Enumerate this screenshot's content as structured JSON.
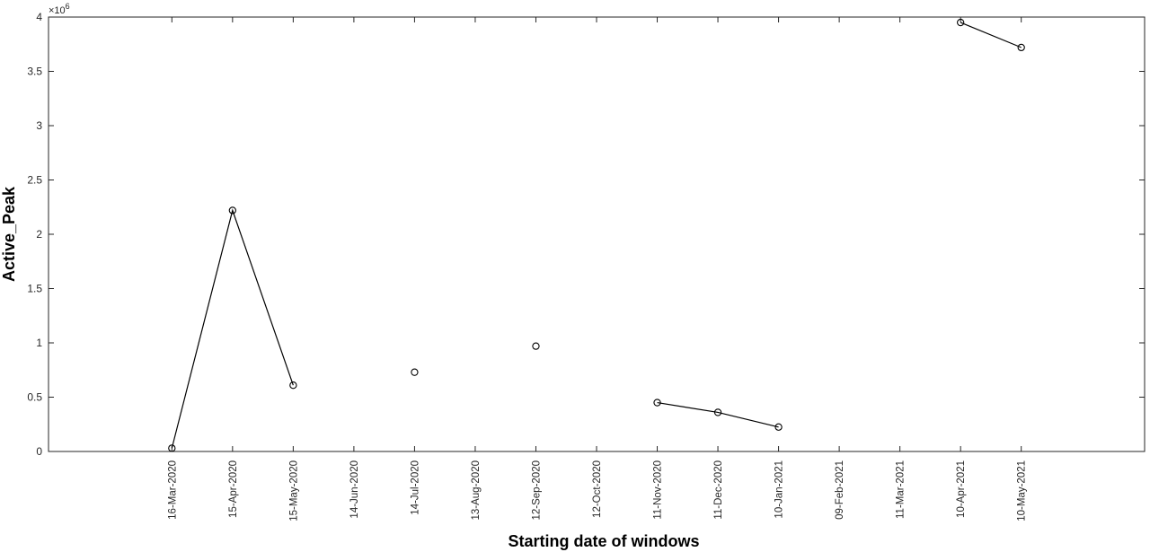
{
  "chart_data": {
    "type": "line",
    "xlabel": "Starting date of windows",
    "ylabel": "Active_Peak",
    "y_multiplier_label": "×10",
    "y_multiplier_exponent": "6",
    "ylim": [
      0,
      4000000
    ],
    "y_ticks": [
      0,
      500000,
      1000000,
      1500000,
      2000000,
      2500000,
      3000000,
      3500000,
      4000000
    ],
    "y_tick_labels": [
      "0",
      "0.5",
      "1",
      "1.5",
      "2",
      "2.5",
      "3",
      "3.5",
      "4"
    ],
    "xlim": [
      "2020-01-15",
      "2021-07-10"
    ],
    "x_ticks": [
      "2020-03-16",
      "2020-04-15",
      "2020-05-15",
      "2020-06-14",
      "2020-07-14",
      "2020-08-13",
      "2020-09-12",
      "2020-10-12",
      "2020-11-11",
      "2020-12-11",
      "2021-01-10",
      "2021-02-09",
      "2021-03-11",
      "2021-04-10",
      "2021-05-10"
    ],
    "x_tick_labels": [
      "16-Mar-2020",
      "15-Apr-2020",
      "15-May-2020",
      "14-Jun-2020",
      "14-Jul-2020",
      "13-Aug-2020",
      "12-Sep-2020",
      "12-Oct-2020",
      "11-Nov-2020",
      "11-Dec-2020",
      "10-Jan-2021",
      "09-Feb-2021",
      "11-Mar-2021",
      "10-Apr-2021",
      "10-May-2021"
    ],
    "grid": false,
    "marker": "open-circle",
    "line_color": "#000000",
    "series": [
      {
        "x": [
          "2020-03-16",
          "2020-04-15",
          "2020-05-15",
          "2020-06-14",
          "2020-07-14",
          "2020-08-13",
          "2020-09-12",
          "2020-10-12",
          "2020-11-11",
          "2020-12-11",
          "2021-01-10",
          "2021-02-09",
          "2021-03-11",
          "2021-04-10",
          "2021-05-10"
        ],
        "values": [
          30000,
          2220000,
          610000,
          null,
          730000,
          null,
          970000,
          null,
          450000,
          360000,
          225000,
          null,
          null,
          3950000,
          3720000
        ]
      }
    ]
  }
}
